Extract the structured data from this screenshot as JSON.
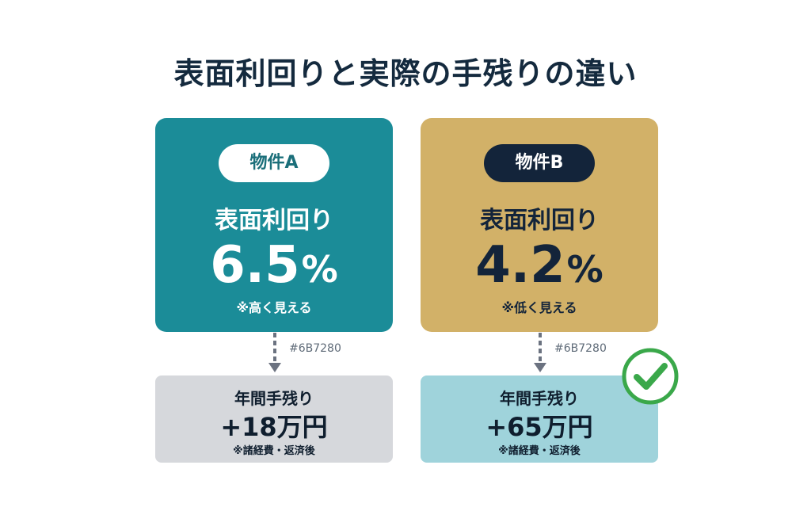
{
  "title": "表面利回りと実際の手残りの違い",
  "property_a": {
    "name": "物件A",
    "yield_label": "表面利回り",
    "yield_number": "6.5",
    "yield_unit": "%",
    "note": "※高く見える",
    "arrow_label": "#6B7280",
    "result_label": "年間手残り",
    "result_value": "+18万円",
    "result_note": "※諸経費・返済後"
  },
  "property_b": {
    "name": "物件B",
    "yield_label": "表面利回り",
    "yield_number": "4.2",
    "yield_unit": "%",
    "note": "※低く見える",
    "arrow_label": "#6B7280",
    "result_label": "年間手残り",
    "result_value": "+65万円",
    "result_note": "※諸経費・返済後"
  },
  "icons": {
    "arrow": "arrow-down-icon",
    "check": "check-circle-icon"
  },
  "colors": {
    "card_a": "#1b8c98",
    "card_b": "#d2b168",
    "result_a": "#d6d8dc",
    "result_b": "#9fd3db",
    "check": "#3aa84a",
    "arrow": "#6b7280"
  }
}
